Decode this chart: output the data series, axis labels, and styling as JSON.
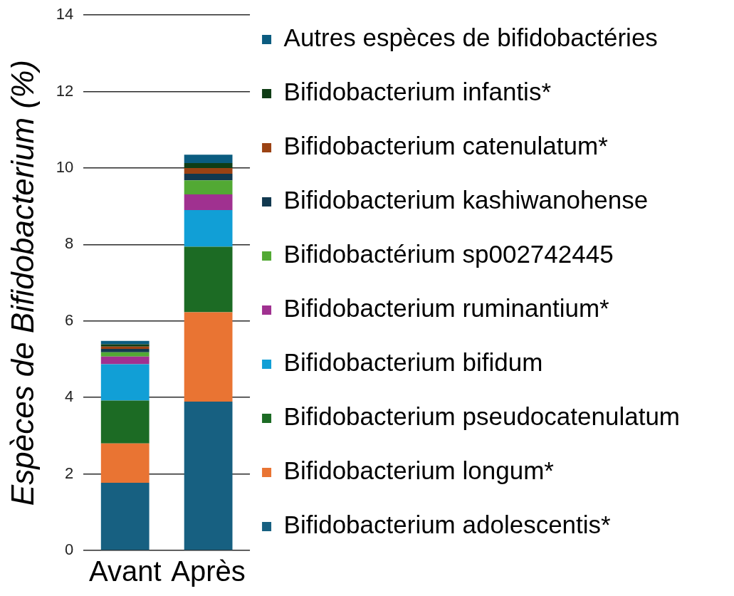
{
  "chart_data": {
    "type": "bar",
    "stacked": true,
    "ylabel": "Espèces de Bifidobacterium (%)",
    "categories": [
      "Avant",
      "Après"
    ],
    "series": [
      {
        "name": "Bifidobacterium adolescentis*",
        "color": "#176081",
        "values": [
          1.77,
          3.89
        ]
      },
      {
        "name": "Bifidobacterium longum*",
        "color": "#e97433",
        "values": [
          1.03,
          2.34
        ]
      },
      {
        "name": "Bifidobacterium pseudocatenulatum",
        "color": "#1c6b24",
        "values": [
          1.12,
          1.71
        ]
      },
      {
        "name": "Bifidobacterium bifidum",
        "color": "#119fd6",
        "values": [
          0.95,
          0.96
        ]
      },
      {
        "name": "Bifidobacterium ruminantium*",
        "color": "#a03190",
        "values": [
          0.2,
          0.41
        ]
      },
      {
        "name": "Bifidobactérium sp002742445",
        "color": "#52a934",
        "values": [
          0.11,
          0.37
        ]
      },
      {
        "name": "Bifidobacterium kashiwanohense",
        "color": "#11384f",
        "values": [
          0.09,
          0.17
        ]
      },
      {
        "name": "Bifidobacterium catenulatum*",
        "color": "#9b4213",
        "values": [
          0.06,
          0.15
        ]
      },
      {
        "name": "Bifidobacterium infantis*",
        "color": "#0f3d16",
        "values": [
          0.06,
          0.13
        ]
      },
      {
        "name": "Autres espèces de bifidobactéries",
        "color": "#0b5c80",
        "values": [
          0.09,
          0.22
        ]
      }
    ],
    "ylim": [
      0,
      14
    ],
    "yticks": [
      0,
      2,
      4,
      6,
      8,
      10,
      12,
      14
    ],
    "grid": "y",
    "legend": "right"
  }
}
